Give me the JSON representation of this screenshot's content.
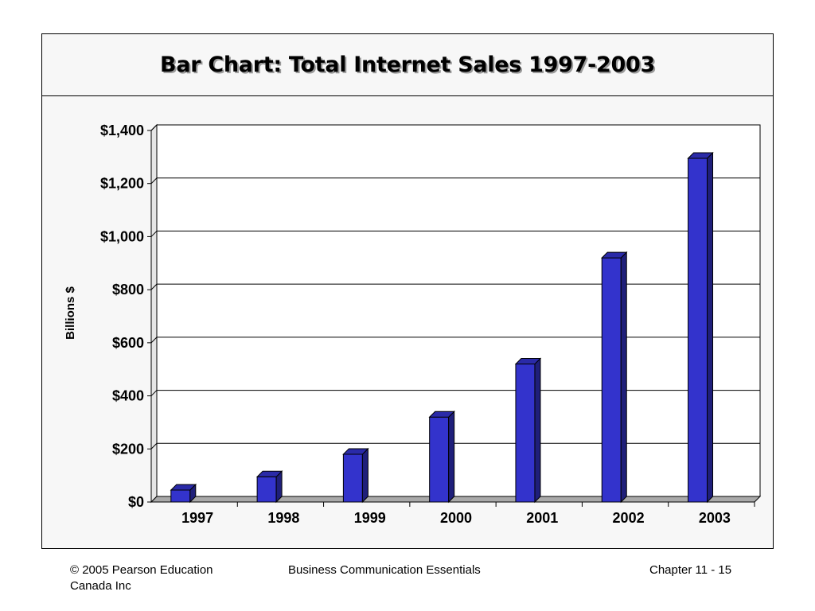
{
  "slide": {
    "title": "Bar Chart: Total Internet Sales 1997-2003"
  },
  "footer": {
    "left": "© 2005 Pearson Education Canada Inc",
    "center": "Business Communication Essentials",
    "right": "Chapter 11 - 15"
  },
  "chart_data": {
    "type": "bar",
    "categories": [
      "1997",
      "1998",
      "1999",
      "2000",
      "2001",
      "2002",
      "2003"
    ],
    "values": [
      45,
      95,
      180,
      320,
      520,
      920,
      1295
    ],
    "ylabel": "Billions $",
    "ylim": [
      0,
      1400
    ],
    "yticks": [
      "$0",
      "$200",
      "$400",
      "$600",
      "$800",
      "$1,000",
      "$1,200",
      "$1,400"
    ],
    "grid": true,
    "style": "3d",
    "bar_color": "#3333cc",
    "bar_side_color": "#1f1f7a",
    "bar_top_color": "#2a2aa8",
    "floor_color": "#a9a9a9"
  }
}
